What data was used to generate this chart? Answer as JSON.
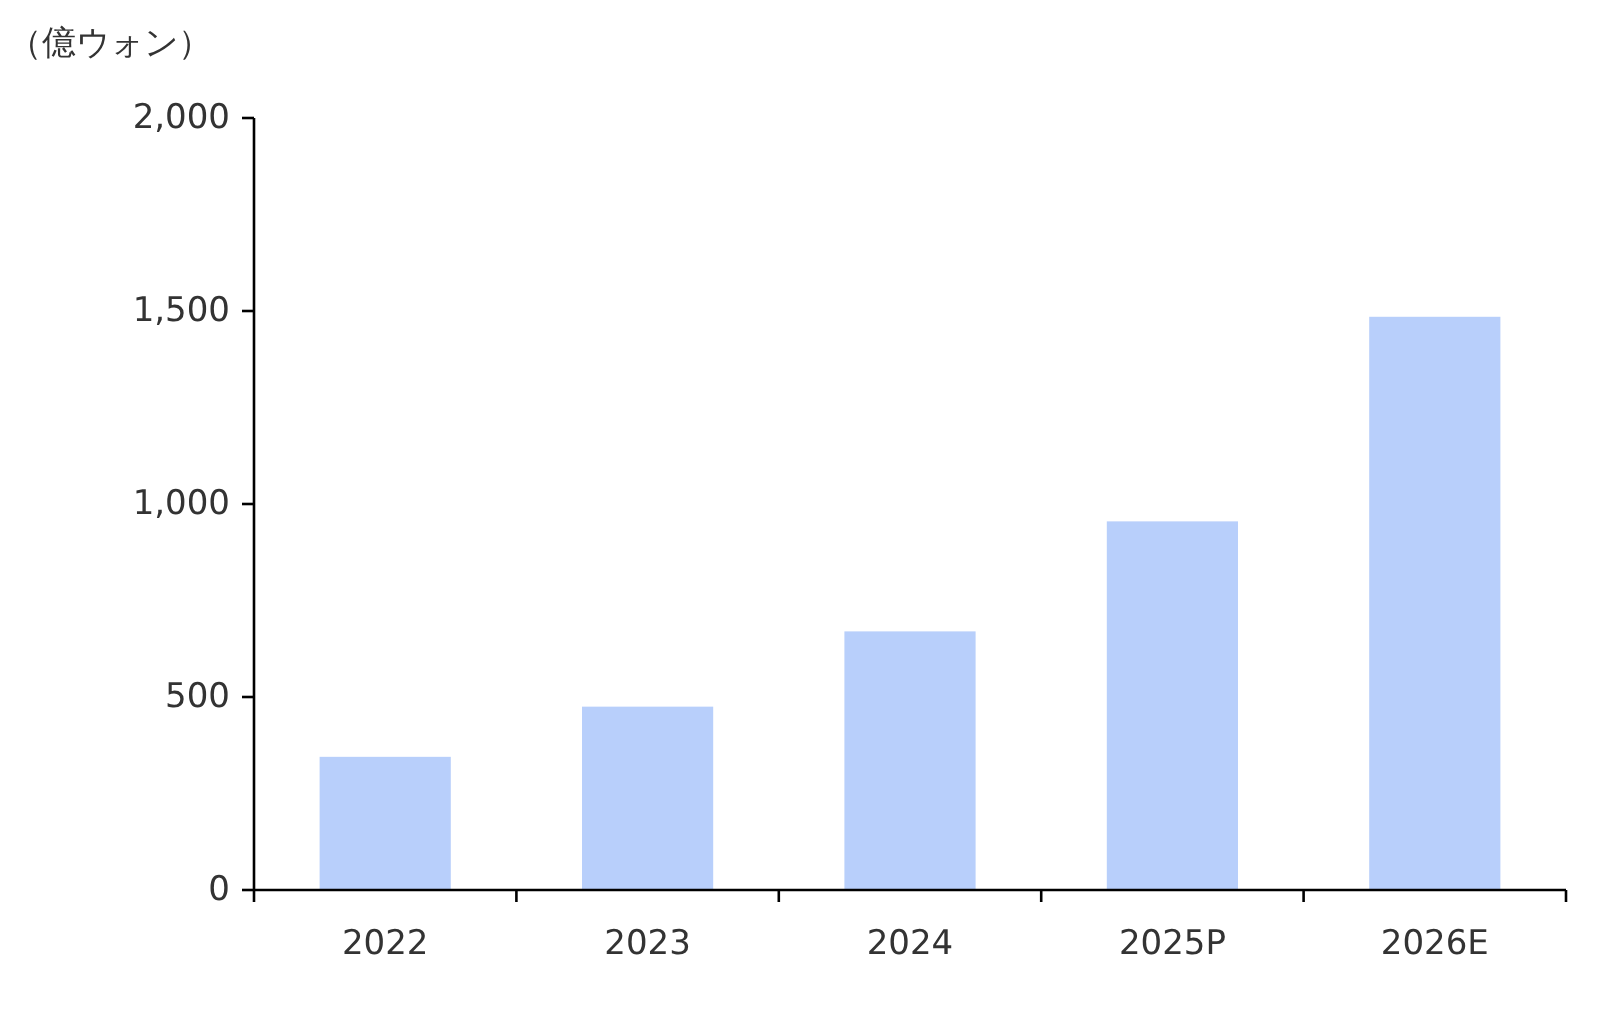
{
  "chart_data": {
    "type": "bar",
    "ylabel": "（億ウォン）",
    "categories": [
      "2022",
      "2023",
      "2024",
      "2025P",
      "2026E"
    ],
    "values": [
      345,
      475,
      670,
      955,
      1485
    ],
    "color": "#b8cffb",
    "ylim": [
      0,
      2000
    ],
    "yticks": [
      {
        "value": 0,
        "label": "0"
      },
      {
        "value": 500,
        "label": "500"
      },
      {
        "value": 1000,
        "label": "1,000"
      },
      {
        "value": 1500,
        "label": "1,500"
      },
      {
        "value": 2000,
        "label": "2,000"
      }
    ],
    "grid": false
  }
}
